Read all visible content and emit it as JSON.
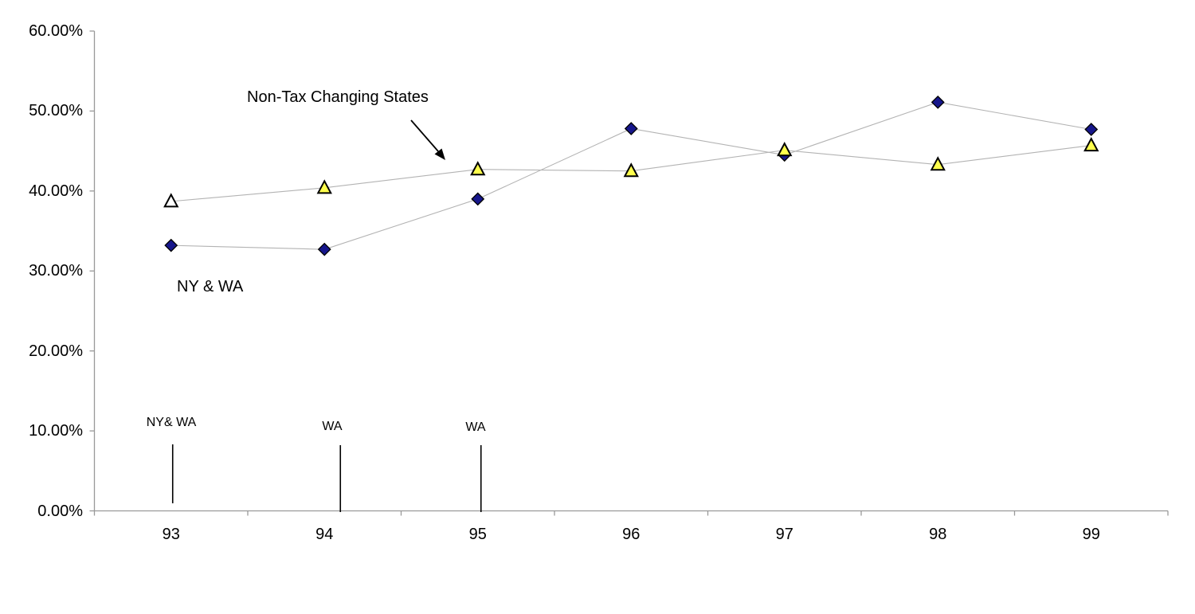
{
  "chart_data": {
    "type": "line",
    "title": "",
    "xlabel": "",
    "ylabel": "",
    "categories": [
      "93",
      "94",
      "95",
      "96",
      "97",
      "98",
      "99"
    ],
    "y_tick_labels": [
      "0.00%",
      "10.00%",
      "20.00%",
      "30.00%",
      "40.00%",
      "50.00%",
      "60.00%"
    ],
    "ylim": [
      0,
      60
    ],
    "y_tick_step": 10,
    "grid": false,
    "legend_position": "none",
    "series": [
      {
        "name": "NY & WA",
        "marker": "diamond",
        "marker_fill": "#16168b",
        "marker_stroke": "#000000",
        "values": [
          33.2,
          32.7,
          39.0,
          47.8,
          44.5,
          51.1,
          47.7
        ]
      },
      {
        "name": "Non-Tax Changing States",
        "marker": "triangle",
        "marker_fill": "#ffff4d",
        "marker_fill_first_point": "#ffffff",
        "marker_stroke": "#000000",
        "values": [
          38.7,
          40.4,
          42.7,
          42.5,
          45.1,
          43.3,
          45.7
        ]
      }
    ],
    "line_color": "#b3b3b3",
    "axis_color": "#999999",
    "annotation_color": "#000000",
    "annotations": {
      "series_label_top": "Non-Tax Changing States",
      "series_label_bottom": "NY & WA",
      "event_markers": [
        {
          "label": "NY& WA",
          "year": "93"
        },
        {
          "label": "WA",
          "year": "94"
        },
        {
          "label": "WA",
          "year": "95"
        }
      ]
    }
  }
}
